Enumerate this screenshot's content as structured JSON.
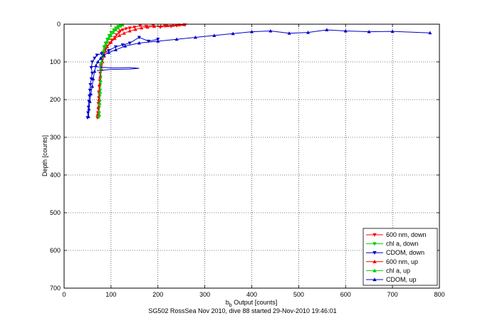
{
  "chart_data": {
    "type": "scatter",
    "xlabel_main": "b",
    "xlabel_sub": "b",
    "xlabel_rest": " Output [counts]",
    "ylabel": "Depth [counts]",
    "xlim": [
      0,
      800
    ],
    "ylim": [
      0,
      700
    ],
    "y_reversed": true,
    "grid": true,
    "xticks": [
      0,
      100,
      200,
      300,
      400,
      500,
      600,
      700,
      800
    ],
    "yticks": [
      0,
      100,
      200,
      300,
      400,
      500,
      600,
      700
    ],
    "legend_position": "bottom-right",
    "series": [
      {
        "name": "600 nm, down",
        "color": "#ff0000",
        "marker": "triangle-down",
        "x": [
          258,
          240,
          228,
          215,
          205,
          190,
          175,
          162,
          150,
          140,
          132,
          125,
          120,
          117,
          112,
          108,
          102,
          98,
          92,
          88,
          82,
          80,
          78,
          77,
          76,
          75,
          74,
          74,
          73,
          73,
          72,
          72,
          71
        ],
        "y": [
          2,
          4,
          6,
          5,
          8,
          3,
          6,
          4,
          8,
          10,
          12,
          15,
          18,
          22,
          28,
          35,
          42,
          50,
          58,
          65,
          80,
          95,
          110,
          130,
          150,
          165,
          180,
          195,
          210,
          225,
          235,
          242,
          248
        ]
      },
      {
        "name": "chl a, down",
        "color": "#00cc00",
        "marker": "triangle-down",
        "x": [
          120,
          115,
          110,
          106,
          100,
          96,
          92,
          88,
          85,
          82,
          80,
          79,
          78,
          78,
          77,
          77,
          76,
          76,
          75,
          75,
          74
        ],
        "y": [
          3,
          6,
          10,
          15,
          22,
          30,
          40,
          50,
          60,
          75,
          90,
          105,
          120,
          140,
          160,
          175,
          190,
          205,
          220,
          235,
          247
        ]
      },
      {
        "name": "CDOM, down",
        "color": "#0000cc",
        "marker": "triangle-down",
        "x": [
          200,
          180,
          160,
          140,
          125,
          110,
          95,
          80,
          70,
          65,
          60,
          58,
          60,
          58,
          56,
          55,
          54,
          53,
          52,
          51,
          50
        ],
        "y": [
          40,
          45,
          35,
          50,
          55,
          60,
          70,
          78,
          82,
          90,
          100,
          115,
          130,
          145,
          160,
          175,
          190,
          205,
          220,
          235,
          248
        ]
      },
      {
        "name": "600 nm, up",
        "color": "#ff0000",
        "marker": "triangle-up",
        "x": [
          72,
          73,
          74,
          75,
          76,
          77,
          80,
          82,
          85,
          88,
          92,
          100,
          108,
          118,
          128,
          140,
          152,
          165,
          178,
          192,
          206,
          220,
          232,
          245,
          255
        ],
        "y": [
          240,
          220,
          200,
          180,
          160,
          140,
          120,
          100,
          85,
          72,
          60,
          48,
          38,
          30,
          24,
          18,
          14,
          10,
          8,
          6,
          5,
          4,
          3,
          2,
          1
        ]
      },
      {
        "name": "chl a, up",
        "color": "#00cc00",
        "marker": "triangle-up",
        "x": [
          75,
          76,
          77,
          78,
          79,
          80,
          82,
          85,
          88,
          92,
          96,
          100,
          105,
          110,
          115,
          120,
          125
        ],
        "y": [
          240,
          210,
          180,
          150,
          120,
          100,
          85,
          70,
          58,
          48,
          38,
          30,
          22,
          15,
          10,
          5,
          2
        ]
      },
      {
        "name": "CDOM, up",
        "color": "#0000cc",
        "marker": "triangle-up",
        "x": [
          52,
          53,
          55,
          57,
          60,
          62,
          65,
          68,
          72,
          78,
          85,
          95,
          110,
          130,
          160,
          200,
          240,
          280,
          320,
          360,
          400,
          440,
          480,
          520,
          560,
          600,
          650,
          700,
          780
        ],
        "y": [
          245,
          225,
          205,
          185,
          165,
          145,
          125,
          110,
          100,
          90,
          82,
          75,
          68,
          58,
          50,
          45,
          40,
          35,
          30,
          25,
          20,
          18,
          24,
          22,
          15,
          18,
          20,
          19,
          23
        ]
      }
    ],
    "spike_line": {
      "color": "#0000cc",
      "x": [
        60,
        100,
        140,
        160,
        140,
        100,
        70
      ],
      "y": [
        112,
        116,
        115,
        117,
        119,
        120,
        123
      ]
    }
  },
  "caption": "SG502 RossSea Nov 2010, dive 88 started 29-Nov-2010 19:46:01"
}
